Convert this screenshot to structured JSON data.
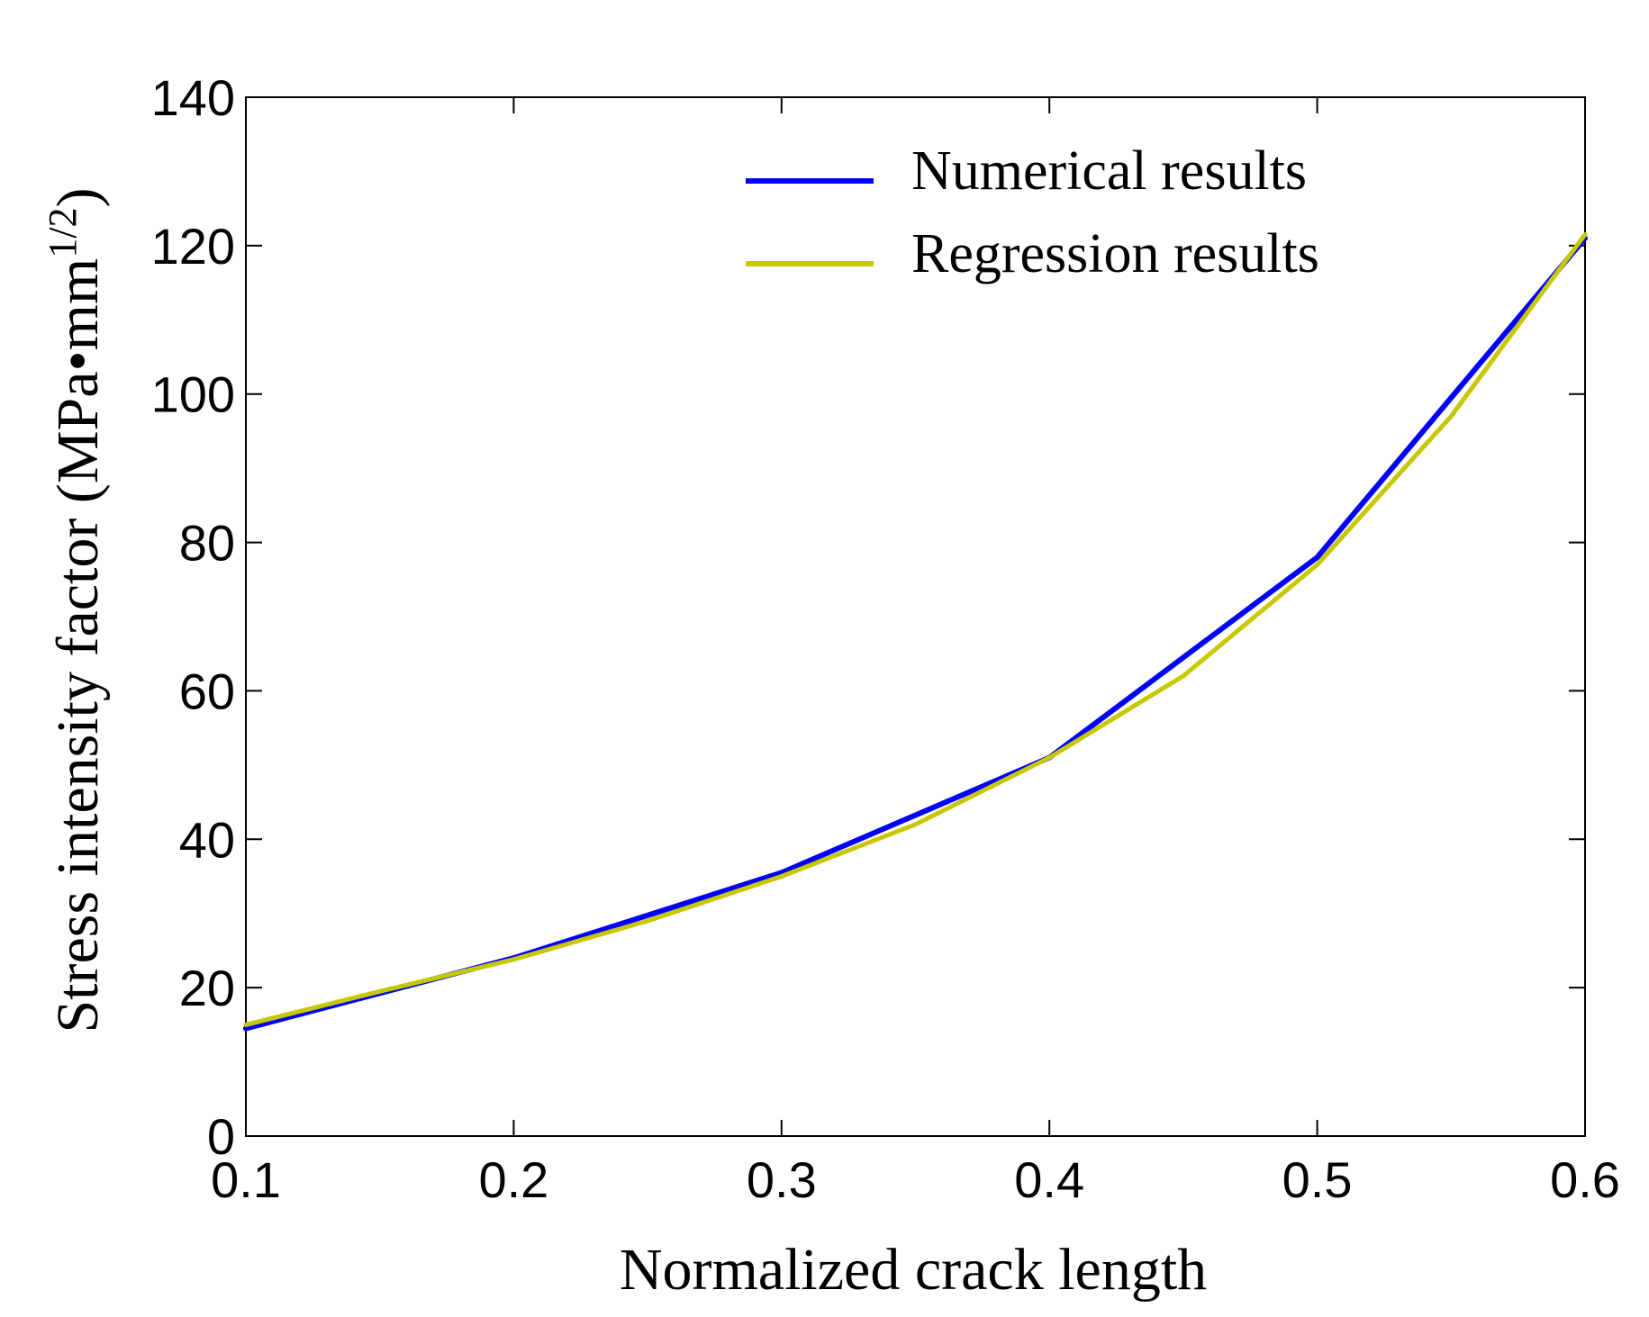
{
  "chart_data": {
    "type": "line",
    "title": "",
    "xlabel": "Normalized crack length",
    "ylabel_main": "Stress intensity factor (MPa•mm",
    "ylabel_sup": "1/2",
    "ylabel_close": ")",
    "xlim": [
      0.1,
      0.6
    ],
    "ylim": [
      0,
      140
    ],
    "xticks": [
      0.1,
      0.2,
      0.3,
      0.4,
      0.5,
      0.6
    ],
    "xtick_labels": [
      "0.1",
      "0.2",
      "0.3",
      "0.4",
      "0.5",
      "0.6"
    ],
    "yticks": [
      0,
      20,
      40,
      60,
      80,
      100,
      120,
      140
    ],
    "ytick_labels": [
      "0",
      "20",
      "40",
      "60",
      "80",
      "100",
      "120",
      "140"
    ],
    "grid": false,
    "legend_position": "top-right",
    "series": [
      {
        "name": "Numerical results",
        "color": "#0000ff",
        "x": [
          0.1,
          0.2,
          0.3,
          0.4,
          0.5,
          0.6
        ],
        "y": [
          14.5,
          24,
          35.5,
          51,
          78,
          121
        ]
      },
      {
        "name": "Regression results",
        "color": "#c8c800",
        "x": [
          0.1,
          0.15,
          0.2,
          0.25,
          0.3,
          0.35,
          0.4,
          0.45,
          0.5,
          0.55,
          0.6
        ],
        "y": [
          15,
          19.5,
          23.8,
          29,
          35,
          42,
          51,
          62,
          77,
          97,
          121.5
        ]
      }
    ]
  }
}
